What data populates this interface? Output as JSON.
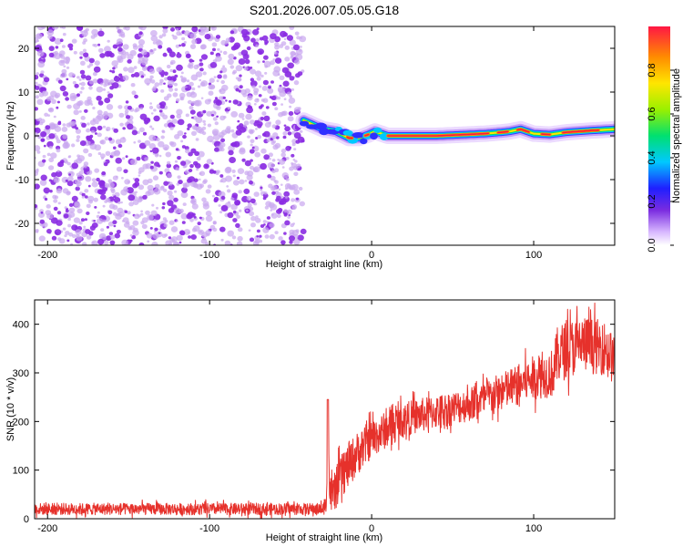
{
  "title": "S201.2026.007.05.05.G18",
  "colors": {
    "axis": "#000000",
    "snr_line": "#e6312b",
    "noise_dots": "#8a2be2",
    "noise_light": "#c9a6f0",
    "background": "#ffffff"
  },
  "chart_data": [
    {
      "type": "heatmap",
      "name": "spectrogram",
      "xlabel": "Height of straight line (km)",
      "ylabel": "Frequency (Hz)",
      "xlim": [
        -208,
        150
      ],
      "ylim": [
        -25,
        25
      ],
      "xticks": [
        "-200",
        "-100",
        "0",
        "100"
      ],
      "xtick_values": [
        -200,
        -100,
        0,
        100
      ],
      "yticks": [
        "-20",
        "-10",
        "0",
        "10",
        "20"
      ],
      "ytick_values": [
        -20,
        -10,
        0,
        10,
        20
      ],
      "noise_region_x": [
        -208,
        -42
      ],
      "signal_track": {
        "x": [
          -42,
          -36,
          -30,
          -22,
          -14,
          -8,
          -2,
          2,
          10,
          40,
          70,
          80,
          85,
          92,
          100,
          110,
          120,
          135,
          150
        ],
        "y": [
          3.5,
          2.5,
          1.5,
          1.0,
          -0.5,
          -0.5,
          0.3,
          1.0,
          0.0,
          0.0,
          0.5,
          0.8,
          1.0,
          1.5,
          0.5,
          0.3,
          0.8,
          1.2,
          1.5
        ]
      },
      "colorbar": {
        "label": "Normalized spectral amplitude",
        "range": [
          0,
          1
        ],
        "ticks": [
          "0.0",
          "0.2",
          "0.4",
          "0.6",
          "0.8"
        ],
        "tick_values": [
          0.0,
          0.2,
          0.4,
          0.6,
          0.8
        ]
      }
    },
    {
      "type": "line",
      "name": "snr",
      "xlabel": "Height of straight line (km)",
      "ylabel": "SNR (10 * v/v)",
      "xlim": [
        -208,
        150
      ],
      "ylim": [
        0,
        450
      ],
      "xticks": [
        "-200",
        "-100",
        "0",
        "100"
      ],
      "xtick_values": [
        -200,
        -100,
        0,
        100
      ],
      "yticks": [
        "0",
        "100",
        "200",
        "300",
        "400"
      ],
      "ytick_values": [
        0,
        100,
        200,
        300,
        400
      ],
      "series": [
        {
          "name": "SNR",
          "trend_x": [
            -208,
            -30,
            -28,
            -27,
            -26,
            -24,
            -20,
            -10,
            0,
            20,
            40,
            60,
            80,
            100,
            112,
            115,
            130,
            145,
            150
          ],
          "trend_y": [
            20,
            20,
            30,
            200,
            60,
            45,
            80,
            130,
            165,
            205,
            220,
            235,
            260,
            290,
            300,
            340,
            360,
            350,
            320
          ],
          "spread": [
            12,
            12,
            20,
            40,
            30,
            40,
            45,
            45,
            40,
            35,
            35,
            35,
            40,
            45,
            50,
            60,
            60,
            55,
            50
          ]
        }
      ]
    }
  ]
}
